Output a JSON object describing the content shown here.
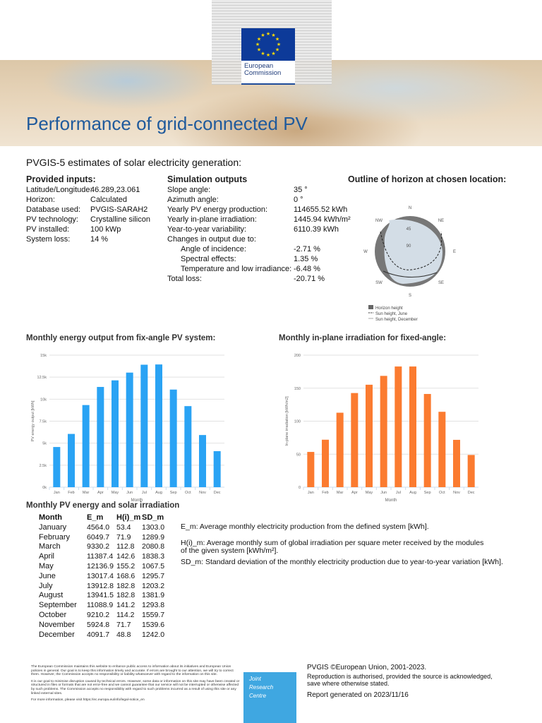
{
  "header": {
    "logo_text": [
      "European",
      "Commission"
    ],
    "title": "Performance of grid-connected PV"
  },
  "subtitle": "PVGIS-5 estimates of solar electricity generation:",
  "inputs": {
    "heading": "Provided inputs:",
    "rows": [
      {
        "label": "Latitude/Longitude:",
        "value": "46.289,23.061"
      },
      {
        "label": "Horizon:",
        "value": "Calculated"
      },
      {
        "label": "Database used:",
        "value": "PVGIS-SARAH2"
      },
      {
        "label": "PV technology:",
        "value": "Crystalline silicon"
      },
      {
        "label": "PV installed:",
        "value": "100 kWp"
      },
      {
        "label": "System loss:",
        "value": "14 %"
      }
    ]
  },
  "outputs": {
    "heading": "Simulation outputs",
    "rows": [
      {
        "label": "Slope angle:",
        "value": "35 °",
        "indent": false
      },
      {
        "label": "Azimuth angle:",
        "value": "0 °",
        "indent": false
      },
      {
        "label": "Yearly PV energy production:",
        "value": "114655.52 kWh",
        "indent": false
      },
      {
        "label": "Yearly in-plane irradiation:",
        "value": "1445.94 kWh/m²",
        "indent": false
      },
      {
        "label": "Year-to-year variability:",
        "value": "6110.39 kWh",
        "indent": false
      },
      {
        "label": "Changes in output due to:",
        "value": "",
        "indent": false
      },
      {
        "label": "Angle of incidence:",
        "value": "-2.71 %",
        "indent": true
      },
      {
        "label": "Spectral effects:",
        "value": "1.35 %",
        "indent": true
      },
      {
        "label": "Temperature and low irradiance:",
        "value": "-6.48 %",
        "indent": true
      },
      {
        "label": "Total loss:",
        "value": "-20.71 %",
        "indent": false
      }
    ]
  },
  "horizon": {
    "heading": "Outline of horizon at chosen location:",
    "directions": [
      "N",
      "NE",
      "E",
      "SE",
      "S",
      "SW",
      "W",
      "NW"
    ],
    "rings": [
      "45",
      "90"
    ],
    "legend": [
      "Horizon height",
      "Sun height, June",
      "Sun height, December"
    ],
    "colors": {
      "horizon": "#777777",
      "sky": "#d3dde6"
    }
  },
  "chart_data": [
    {
      "type": "bar",
      "title": "Monthly energy output from fix-angle PV system:",
      "xlabel": "Month",
      "ylabel": "PV energy output [kWh]",
      "color": "#2aa3f4",
      "categories": [
        "Jan",
        "Feb",
        "Mar",
        "Apr",
        "May",
        "Jun",
        "Jul",
        "Aug",
        "Sep",
        "Oct",
        "Nov",
        "Dec"
      ],
      "values": [
        4564.0,
        6049.7,
        9330.2,
        11387.4,
        12136.9,
        13017.4,
        13912.8,
        13941.5,
        11088.9,
        9210.2,
        5924.8,
        4091.7
      ],
      "ylim": [
        0,
        15000
      ],
      "yticks": [
        "0k",
        "2.5k",
        "5k",
        "7.5k",
        "10k",
        "12.5k",
        "15k"
      ],
      "grid": true
    },
    {
      "type": "bar",
      "title": "Monthly in-plane irradiation for fixed-angle:",
      "xlabel": "Month",
      "ylabel": "In-plane irradiation [kWh/m2]",
      "color": "#fb7b30",
      "categories": [
        "Jan",
        "Feb",
        "Mar",
        "Apr",
        "May",
        "Jun",
        "Jul",
        "Aug",
        "Sep",
        "Oct",
        "Nov",
        "Dec"
      ],
      "values": [
        53.4,
        71.9,
        112.8,
        142.6,
        155.2,
        168.6,
        182.8,
        182.8,
        141.2,
        114.2,
        71.7,
        48.8
      ],
      "ylim": [
        0,
        200
      ],
      "yticks": [
        "0",
        "50",
        "100",
        "150",
        "200"
      ],
      "grid": true
    }
  ],
  "table": {
    "title": "Monthly PV energy and solar irradiation",
    "headers": [
      "Month",
      "E_m",
      "H(i)_m",
      "SD_m"
    ],
    "rows": [
      [
        "January",
        "4564.0",
        "53.4",
        "1303.0"
      ],
      [
        "February",
        "6049.7",
        "71.9",
        "1289.9"
      ],
      [
        "March",
        "9330.2",
        "112.8",
        "2080.8"
      ],
      [
        "April",
        "11387.4",
        "142.6",
        "1838.3"
      ],
      [
        "May",
        "12136.9",
        "155.2",
        "1067.5"
      ],
      [
        "June",
        "13017.4",
        "168.6",
        "1295.7"
      ],
      [
        "July",
        "13912.8",
        "182.8",
        "1203.2"
      ],
      [
        "August",
        "13941.5",
        "182.8",
        "1381.9"
      ],
      [
        "September",
        "11088.9",
        "141.2",
        "1293.8"
      ],
      [
        "October",
        "9210.2",
        "114.2",
        "1559.7"
      ],
      [
        "November",
        "5924.8",
        "71.7",
        "1539.6"
      ],
      [
        "December",
        "4091.7",
        "48.8",
        "1242.0"
      ]
    ],
    "notes": [
      "E_m: Average monthly electricity production from the defined system [kWh].",
      "H(i)_m: Average monthly sum of global irradiation per square meter received by the modules of the given system [kWh/m²].",
      "SD_m: Standard deviation of the monthly electricity production due to year-to-year variation [kWh]."
    ]
  },
  "footer": {
    "disclaimer": [
      "The European Commission maintains this website to enhance public access to information about its initiatives and European Union policies in general. Our goal is to keep this information timely and accurate. If errors are brought to our attention, we will try to correct them. However, the Commission accepts no responsibility or liability whatsoever with regard to the information on this site.",
      "It is our goal to minimise disruption caused by technical errors. However, some data or information on this site may have been created or structured in files or formats that are not error-free and we cannot guarantee that our service will not be interrupted or otherwise affected by such problems. The Commission accepts no responsibility with regard to such problems incurred as a result of using this site or any linked external sites.",
      "For more information, please visit https://ec.europa.eu/info/legal-notice_en"
    ],
    "jrc": [
      "Joint",
      "Research",
      "Centre"
    ],
    "copyright": "PVGIS ©European Union, 2001-2023.",
    "reproduction": "Reproduction is authorised, provided the source is acknowledged, save where otherwise stated.",
    "generated": "Report generated on 2023/11/16"
  }
}
